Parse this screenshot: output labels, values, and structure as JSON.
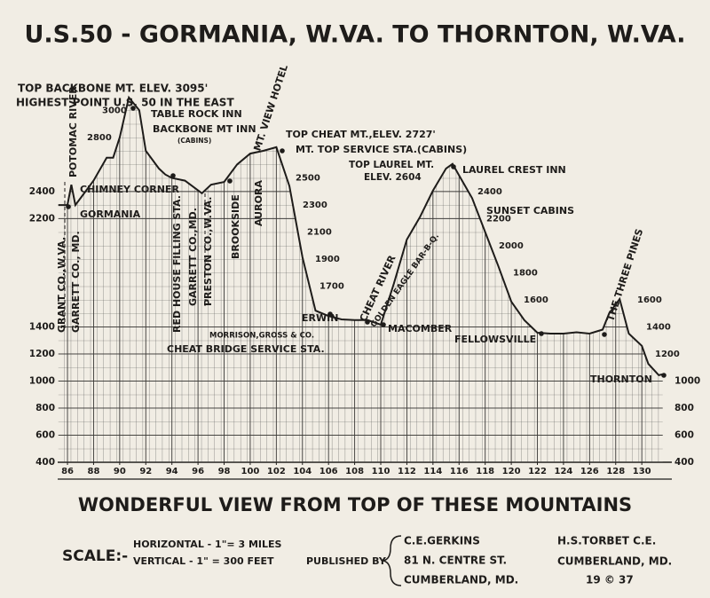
{
  "chart_data": {
    "type": "area",
    "title": "U.S.50 - GORMANIA, W.VA. TO THORNTON, W.VA.",
    "x": [
      85.3,
      86,
      86.3,
      86.6,
      87,
      88,
      89,
      89.5,
      90,
      90.7,
      91.5,
      92,
      93,
      93.5,
      94,
      95,
      96.3,
      97,
      98,
      99,
      100,
      101,
      102,
      103,
      104,
      105,
      106,
      107,
      108,
      109,
      110,
      111,
      112,
      113,
      114,
      115,
      115.5,
      116,
      117,
      118,
      119,
      120,
      121,
      122,
      123,
      124,
      125,
      126,
      127,
      127.5,
      128.3,
      129,
      130,
      130.5,
      131.3,
      131.6
    ],
    "values": [
      2300,
      2300,
      2450,
      2300,
      2350,
      2480,
      2650,
      2650,
      2800,
      3095,
      3000,
      2700,
      2570,
      2525,
      2500,
      2480,
      2387,
      2450,
      2470,
      2600,
      2680,
      2700,
      2727,
      2440,
      1915,
      1520,
      1480,
      1455,
      1450,
      1450,
      1416,
      1718,
      2045,
      2210,
      2406,
      2570,
      2604,
      2518,
      2350,
      2100,
      1850,
      1587,
      1450,
      1357,
      1350,
      1350,
      1360,
      1350,
      1380,
      1500,
      1606,
      1350,
      1260,
      1127,
      1043,
      1050
    ],
    "color": "#1e1c1a",
    "xlim": [
      85.25,
      132.3
    ],
    "ylim": [
      400,
      3100
    ],
    "y2lim": [
      400,
      3100
    ],
    "xticks": [
      86,
      88,
      90,
      92,
      94,
      96,
      98,
      100,
      102,
      104,
      106,
      108,
      110,
      112,
      114,
      116,
      118,
      120,
      122,
      124,
      126,
      128,
      130
    ],
    "yticks": [
      400,
      600,
      800,
      1000,
      1200,
      1400,
      2200,
      2400
    ],
    "y2ticks": [
      400,
      600,
      800,
      1000
    ],
    "grid": true,
    "elevation_labels": [
      [
        2800,
        3000
      ],
      [
        2500,
        2300,
        2100,
        1900,
        1700
      ],
      [
        2400,
        2200,
        2000,
        1800,
        1600
      ],
      [
        1600,
        1400,
        1200
      ]
    ],
    "annotations": [
      "TOP BACKBONE MT. ELEV. 3095'",
      "HIGHEST POINT U.S. 50 IN THE EAST",
      "TABLE ROCK INN",
      "BACKBONE MT INN",
      "(CABINS)",
      "POTOMAC RIVER",
      "CHIMNEY CORNER",
      "GORMANIA",
      "GRANT CO.,W.VA.",
      "GARRETT CO., MD.",
      "RED HOUSE FILLING STA.",
      "GARRETT CO.,MD.",
      "PRESTON CO.,W.VA.",
      "BROOKSIDE",
      "AURORA",
      "MT. VIEW HOTEL",
      "TOP CHEAT MT.,ELEV. 2727'",
      "MT. TOP SERVICE STA.(CABINS)",
      "ERWIN",
      "MORRISON,GROSS & CO.",
      "CHEAT BRIDGE SERVICE STA.",
      "CHEAT RIVER",
      "GOLDEN EAGLE BAR-B-Q.",
      "MACOMBER",
      "TOP LAUREL MT.",
      "ELEV. 2604",
      "LAUREL CREST INN",
      "SUNSET CABINS",
      "FELLOWSVILLE",
      "THE THREE PINES",
      "THORNTON"
    ],
    "caption": "WONDERFUL VIEW FROM TOP OF THESE MOUNTAINS",
    "scale": {
      "label": "SCALE:-",
      "horizontal": "HORIZONTAL - 1\"= 3 MILES",
      "vertical": "VERTICAL - 1\" = 300 FEET"
    },
    "publisher": {
      "label": "PUBLISHED BY",
      "lines": [
        "C.E.GERKINS",
        "81 N. CENTRE ST.",
        "CUMBERLAND, MD."
      ]
    },
    "engineer": {
      "lines": [
        "H.S.TORBET C.E.",
        "CUMBERLAND, MD.",
        "19 © 37"
      ]
    }
  }
}
